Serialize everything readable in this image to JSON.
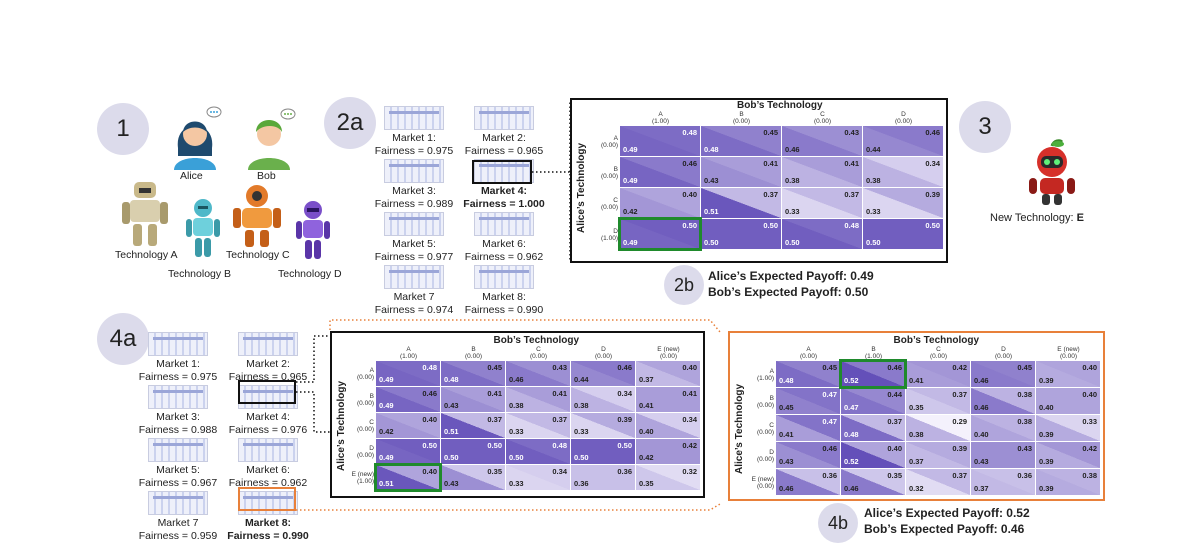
{
  "step_labels": {
    "s1": "1",
    "s2a": "2a",
    "s2b": "2b",
    "s3": "3",
    "s4a": "4a",
    "s4b": "4b"
  },
  "people": {
    "alice": "Alice",
    "bob": "Bob"
  },
  "technologies": {
    "a": "Technology A",
    "b": "Technology B",
    "c": "Technology C",
    "d": "Technology D"
  },
  "new_tech": {
    "prefix": "New Technology: ",
    "name": "E"
  },
  "markets_2a": [
    {
      "name": "Market 1:",
      "fairness": "Fairness = 0.975"
    },
    {
      "name": "Market 2:",
      "fairness": "Fairness = 0.965"
    },
    {
      "name": "Market 3:",
      "fairness": "Fairness = 0.989"
    },
    {
      "name": "Market 4:",
      "fairness": "Fairness = 1.000"
    },
    {
      "name": "Market 5:",
      "fairness": "Fairness = 0.977"
    },
    {
      "name": "Market 6:",
      "fairness": "Fairness = 0.962"
    },
    {
      "name": "Market 7",
      "fairness": "Fairness = 0.974"
    },
    {
      "name": "Market 8:",
      "fairness": "Fairness = 0.990"
    }
  ],
  "markets_4a": [
    {
      "name": "Market 1:",
      "fairness": "Fairness = 0.975"
    },
    {
      "name": "Market 2:",
      "fairness": "Fairness = 0.965"
    },
    {
      "name": "Market 3:",
      "fairness": "Fairness = 0.988"
    },
    {
      "name": "Market 4:",
      "fairness": "Fairness = 0.976"
    },
    {
      "name": "Market 5:",
      "fairness": "Fairness = 0.967"
    },
    {
      "name": "Market 6:",
      "fairness": "Fairness = 0.962"
    },
    {
      "name": "Market 7",
      "fairness": "Fairness = 0.959"
    },
    {
      "name": "Market 8:",
      "fairness": "Fairness = 0.990"
    }
  ],
  "payoff_2b": {
    "alice": "Alice’s Expected Payoff: 0.49",
    "bob": "Bob’s Expected Payoff: 0.50"
  },
  "payoff_4b": {
    "alice": "Alice’s Expected Payoff: 0.52",
    "bob": "Bob’s Expected Payoff: 0.46"
  },
  "matrix_titles": {
    "bob": "Bob’s Technology",
    "alice": "Alice’s Technology"
  },
  "matrix_2b": {
    "cols": [
      {
        "name": "A",
        "prob": "(1.00)"
      },
      {
        "name": "B",
        "prob": "(0.00)"
      },
      {
        "name": "C",
        "prob": "(0.00)"
      },
      {
        "name": "D",
        "prob": "(0.00)"
      }
    ],
    "rows": [
      {
        "name": "A",
        "prob": "(0.00)"
      },
      {
        "name": "B",
        "prob": "(0.00)"
      },
      {
        "name": "C",
        "prob": "(0.00)"
      },
      {
        "name": "D",
        "prob": "(1.00)"
      }
    ],
    "alice": [
      [
        0.49,
        0.48,
        0.46,
        0.44
      ],
      [
        0.49,
        0.43,
        0.38,
        0.38
      ],
      [
        0.42,
        0.51,
        0.33,
        0.33
      ],
      [
        0.49,
        0.5,
        0.5,
        0.5
      ]
    ],
    "bob": [
      [
        0.48,
        0.45,
        0.43,
        0.46
      ],
      [
        0.46,
        0.41,
        0.41,
        0.34
      ],
      [
        0.4,
        0.37,
        0.37,
        0.39
      ],
      [
        0.5,
        0.5,
        0.48,
        0.5
      ]
    ]
  },
  "matrix_4a": {
    "cols": [
      {
        "name": "A",
        "prob": "(1.00)"
      },
      {
        "name": "B",
        "prob": "(0.00)"
      },
      {
        "name": "C",
        "prob": "(0.00)"
      },
      {
        "name": "D",
        "prob": "(0.00)"
      },
      {
        "name": "E (new)",
        "prob": "(0.00)"
      }
    ],
    "rows": [
      {
        "name": "A",
        "prob": "(0.00)"
      },
      {
        "name": "B",
        "prob": "(0.00)"
      },
      {
        "name": "C",
        "prob": "(0.00)"
      },
      {
        "name": "D",
        "prob": "(0.00)"
      },
      {
        "name": "E (new)",
        "prob": "(1.00)"
      }
    ],
    "alice": [
      [
        0.49,
        0.48,
        0.46,
        0.44,
        0.37
      ],
      [
        0.49,
        0.43,
        0.38,
        0.38,
        0.41
      ],
      [
        0.42,
        0.51,
        0.33,
        0.33,
        0.4
      ],
      [
        0.49,
        0.5,
        0.5,
        0.5,
        0.42
      ],
      [
        0.51,
        0.43,
        0.33,
        0.36,
        0.35
      ]
    ],
    "bob": [
      [
        0.48,
        0.45,
        0.43,
        0.46,
        0.4
      ],
      [
        0.46,
        0.41,
        0.41,
        0.34,
        0.41
      ],
      [
        0.4,
        0.37,
        0.37,
        0.39,
        0.34
      ],
      [
        0.5,
        0.5,
        0.48,
        0.5,
        0.42
      ],
      [
        0.4,
        0.35,
        0.34,
        0.36,
        0.32
      ]
    ]
  },
  "matrix_4b": {
    "cols": [
      {
        "name": "A",
        "prob": "(0.00)"
      },
      {
        "name": "B",
        "prob": "(1.00)"
      },
      {
        "name": "C",
        "prob": "(0.00)"
      },
      {
        "name": "D",
        "prob": "(0.00)"
      },
      {
        "name": "E (new)",
        "prob": "(0.00)"
      }
    ],
    "rows": [
      {
        "name": "A",
        "prob": "(1.00)"
      },
      {
        "name": "B",
        "prob": "(0.00)"
      },
      {
        "name": "C",
        "prob": "(0.00)"
      },
      {
        "name": "D",
        "prob": "(0.00)"
      },
      {
        "name": "E (new)",
        "prob": "(0.00)"
      }
    ],
    "alice": [
      [
        0.48,
        0.52,
        0.41,
        0.46,
        0.39
      ],
      [
        0.45,
        0.47,
        0.35,
        0.46,
        0.4
      ],
      [
        0.41,
        0.48,
        0.38,
        0.4,
        0.39
      ],
      [
        0.43,
        0.52,
        0.37,
        0.43,
        0.39
      ],
      [
        0.46,
        0.46,
        0.32,
        0.37,
        0.39
      ]
    ],
    "bob": [
      [
        0.45,
        0.46,
        0.42,
        0.45,
        0.4
      ],
      [
        0.47,
        0.44,
        0.37,
        0.38,
        0.4
      ],
      [
        0.47,
        0.37,
        0.29,
        0.38,
        0.33
      ],
      [
        0.46,
        0.4,
        0.39,
        0.43,
        0.42
      ],
      [
        0.36,
        0.35,
        0.37,
        0.36,
        0.38
      ]
    ]
  },
  "colors": {
    "badge": "#dcdbeb",
    "highlight": "#1f8a2c",
    "orange": "#e8803a",
    "cell_dark": "#6a55b8"
  }
}
